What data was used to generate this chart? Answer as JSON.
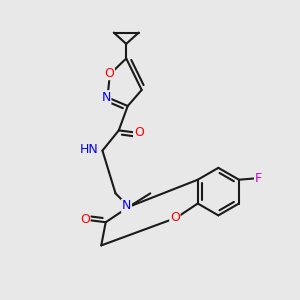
{
  "background_color": "#e8e8e8",
  "bond_color": "#1a1a1a",
  "atom_colors": {
    "N": "#0000ff",
    "O": "#ff0000",
    "F": "#cc00cc",
    "H": "#008080",
    "C": "#1a1a1a"
  },
  "bond_width": 1.5,
  "font_size_atom": 9
}
